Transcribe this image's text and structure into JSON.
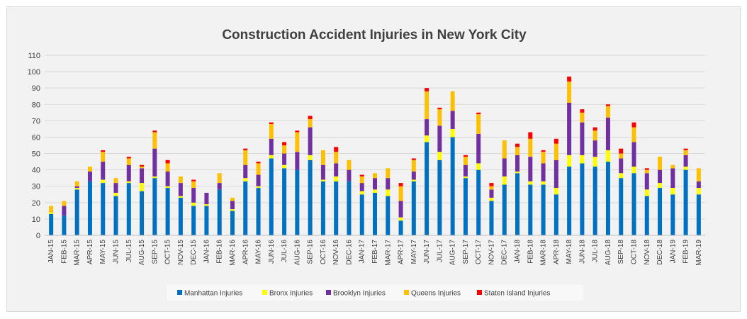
{
  "chart_data": {
    "type": "bar",
    "stacked": true,
    "title": "Construction Accident Injuries in New York City",
    "xlabel": "",
    "ylabel": "",
    "ylim": [
      0,
      110
    ],
    "yticks": [
      0,
      10,
      20,
      30,
      40,
      50,
      60,
      70,
      80,
      90,
      100,
      110
    ],
    "grid": true,
    "legend_position": "bottom",
    "categories": [
      "JAN-15",
      "FEB-15",
      "MAR-15",
      "APR-15",
      "MAY-15",
      "JUN-15",
      "JUL-15",
      "AUG-15",
      "SEP-15",
      "OCT-15",
      "NOV-15",
      "DEC-15",
      "JAN-16",
      "FEB-16",
      "MAR-16",
      "APR-16",
      "MAY-16",
      "JUN-16",
      "JUL-16",
      "AUG-16",
      "SEP-16",
      "OCT-16",
      "NOV-16",
      "DEC-16",
      "JAN-17",
      "FEB-17",
      "MAR-17",
      "APR-17",
      "MAY-17",
      "JUN-17",
      "JUL-17",
      "AUG-17",
      "SEP-17",
      "OCT-17",
      "NOV-17",
      "DEC-17",
      "JAN-18",
      "FEB-18",
      "MAR-18",
      "APR-18",
      "MAY-18",
      "JUN-18",
      "JUL-18",
      "AUG-18",
      "SEP-18",
      "OCT-18",
      "NOV-18",
      "DEC-18",
      "JAN-19",
      "FEB-19",
      "MAR-19"
    ],
    "series": [
      {
        "name": "Manhattan Injuries",
        "color": "#0070c0",
        "values": [
          13,
          12,
          28,
          33,
          32,
          24,
          32,
          27,
          35,
          29,
          23,
          18,
          18,
          28,
          15,
          33,
          29,
          47,
          41,
          40,
          46,
          33,
          33,
          33,
          25,
          26,
          24,
          9,
          33,
          57,
          46,
          60,
          35,
          40,
          21,
          31,
          38,
          31,
          31,
          25,
          42,
          44,
          42,
          45,
          35,
          38,
          24,
          29,
          25,
          40,
          25
        ]
      },
      {
        "name": "Bronx Injuries",
        "color": "#ffff00",
        "values": [
          1,
          0,
          1,
          0,
          2,
          2,
          1,
          5,
          1,
          1,
          1,
          2,
          1,
          0,
          1,
          2,
          1,
          2,
          2,
          0,
          3,
          1,
          3,
          0,
          2,
          2,
          4,
          2,
          1,
          4,
          5,
          5,
          1,
          4,
          2,
          5,
          1,
          2,
          2,
          4,
          7,
          5,
          6,
          7,
          3,
          4,
          4,
          3,
          4,
          2,
          4
        ]
      },
      {
        "name": "Brooklyn Injuries",
        "color": "#7030a0",
        "values": [
          0,
          6,
          1,
          6,
          11,
          6,
          10,
          9,
          17,
          9,
          8,
          9,
          7,
          4,
          5,
          8,
          7,
          10,
          7,
          11,
          17,
          9,
          8,
          7,
          5,
          7,
          7,
          10,
          5,
          10,
          16,
          11,
          7,
          18,
          5,
          11,
          10,
          15,
          11,
          17,
          32,
          20,
          10,
          20,
          9,
          15,
          10,
          8,
          12,
          7,
          4
        ]
      },
      {
        "name": "Queens Injuries",
        "color": "#ffc000",
        "values": [
          4,
          3,
          3,
          3,
          6,
          3,
          4,
          1,
          10,
          5,
          4,
          4,
          0,
          6,
          2,
          9,
          7,
          9,
          5,
          12,
          5,
          9,
          7,
          6,
          4,
          3,
          6,
          9,
          7,
          17,
          10,
          12,
          5,
          12,
          2,
          11,
          5,
          11,
          7,
          10,
          13,
          6,
          6,
          7,
          3,
          9,
          2,
          8,
          2,
          3,
          8
        ]
      },
      {
        "name": "Staten Island Injuries",
        "color": "#ff0000",
        "values": [
          0,
          0,
          0,
          0,
          1,
          0,
          1,
          1,
          1,
          2,
          0,
          1,
          0,
          0,
          0,
          1,
          1,
          1,
          2,
          1,
          2,
          0,
          3,
          0,
          1,
          0,
          0,
          2,
          1,
          2,
          1,
          0,
          1,
          1,
          2,
          0,
          2,
          4,
          1,
          3,
          3,
          2,
          2,
          1,
          3,
          3,
          1,
          0,
          0,
          1,
          0
        ]
      }
    ]
  }
}
